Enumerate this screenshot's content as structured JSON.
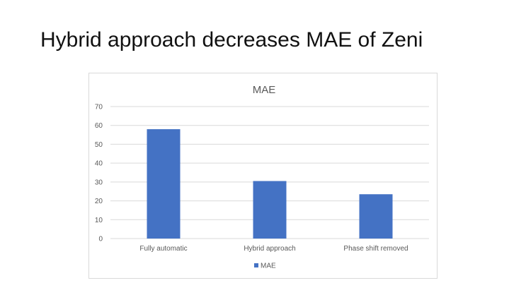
{
  "slide": {
    "title": "Hybrid approach decreases MAE of Zeni"
  },
  "chart_data": {
    "type": "bar",
    "title": "MAE",
    "categories": [
      "Fully automatic",
      "Hybrid approach",
      "Phase shift removed"
    ],
    "series": [
      {
        "name": "MAE",
        "values": [
          58,
          30.5,
          23.5
        ],
        "color": "#4472C4"
      }
    ],
    "ylim": [
      0,
      70
    ],
    "yticks": [
      0,
      10,
      20,
      30,
      40,
      50,
      60,
      70
    ],
    "grid": true,
    "legend": "bottom",
    "xlabel": "",
    "ylabel": ""
  }
}
